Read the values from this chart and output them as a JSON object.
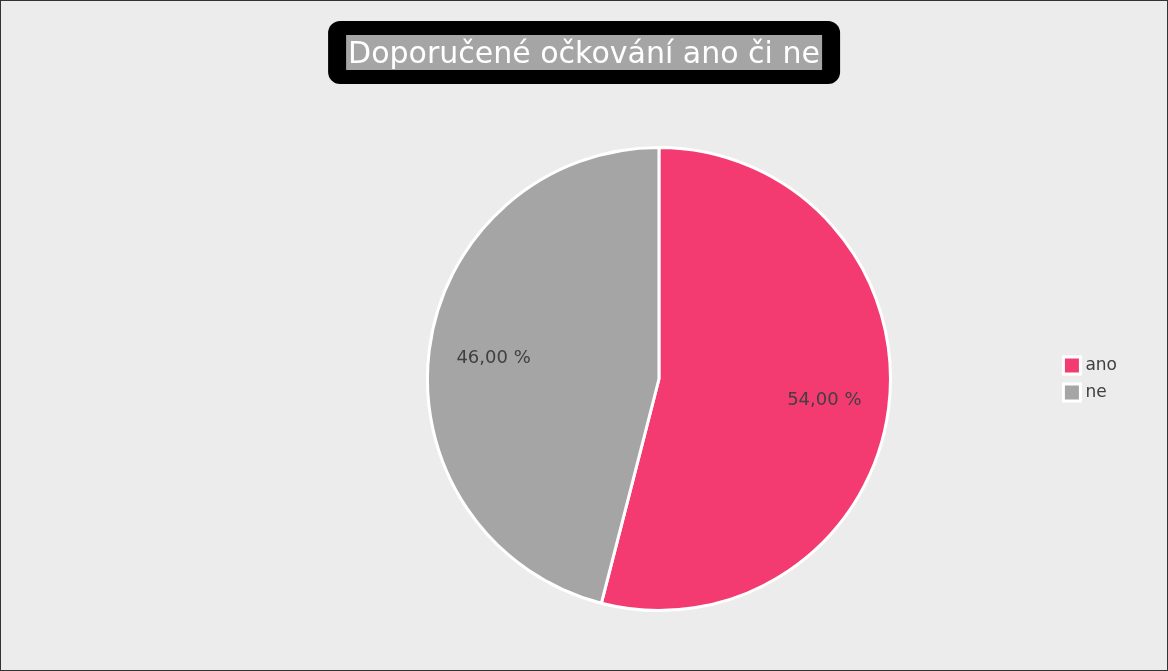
{
  "chart_data": {
    "type": "pie",
    "title": "Doporučené očkování ano či ne",
    "categories": [
      "ano",
      "ne"
    ],
    "values": [
      54,
      46
    ],
    "colors": [
      "#f33b72",
      "#a5a5a5"
    ],
    "value_labels": [
      "54,00 %",
      "46,00 %"
    ],
    "legend": "right"
  }
}
